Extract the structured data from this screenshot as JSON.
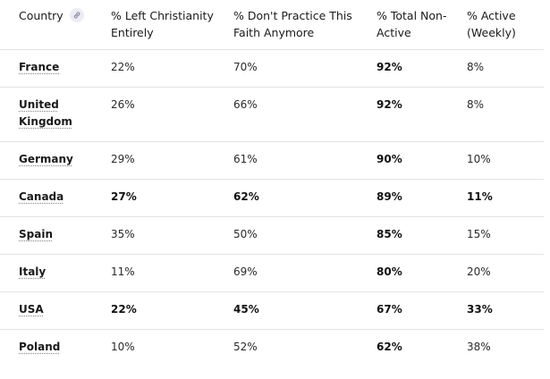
{
  "table": {
    "headers": [
      "Country",
      "% Left Christianity Entirely",
      "% Don't Practice This Faith Anymore",
      "% Total Non-Active",
      "% Active (Weekly)"
    ],
    "header_icon": "link-icon",
    "rows": [
      {
        "country": "France",
        "left": "22%",
        "dont_practice": "70%",
        "total_non_active": "92%",
        "active": "8%",
        "bold": false
      },
      {
        "country": "United Kingdom",
        "left": "26%",
        "dont_practice": "66%",
        "total_non_active": "92%",
        "active": "8%",
        "bold": false
      },
      {
        "country": "Germany",
        "left": "29%",
        "dont_practice": "61%",
        "total_non_active": "90%",
        "active": "10%",
        "bold": false
      },
      {
        "country": "Canada",
        "left": "27%",
        "dont_practice": "62%",
        "total_non_active": "89%",
        "active": "11%",
        "bold": true
      },
      {
        "country": "Spain",
        "left": "35%",
        "dont_practice": "50%",
        "total_non_active": "85%",
        "active": "15%",
        "bold": false
      },
      {
        "country": "Italy",
        "left": "11%",
        "dont_practice": "69%",
        "total_non_active": "80%",
        "active": "20%",
        "bold": false
      },
      {
        "country": "USA",
        "left": "22%",
        "dont_practice": "45%",
        "total_non_active": "67%",
        "active": "33%",
        "bold": true
      },
      {
        "country": "Poland",
        "left": "10%",
        "dont_practice": "52%",
        "total_non_active": "62%",
        "active": "38%",
        "bold": false
      }
    ]
  }
}
